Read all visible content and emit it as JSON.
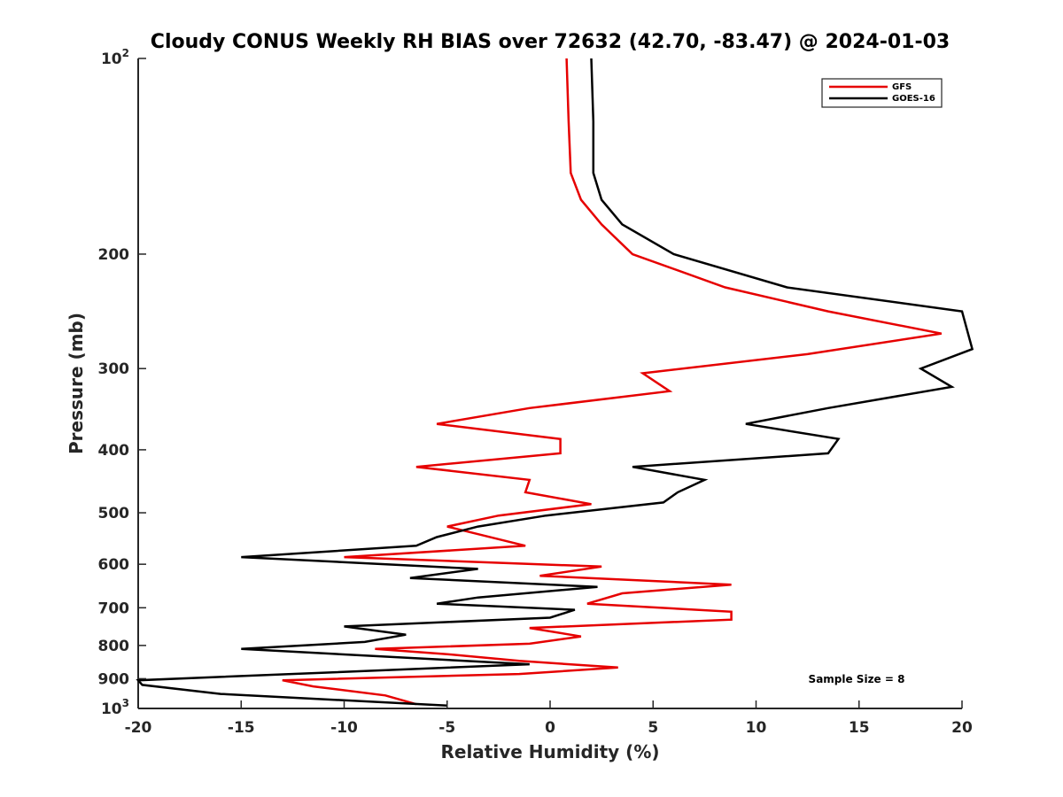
{
  "chart_data": {
    "type": "line",
    "title": "Cloudy CONUS Weekly RH BIAS over 72632 (42.70, -83.47) @ 2024-01-03",
    "xlabel": "Relative Humidity (%)",
    "ylabel": "Pressure (mb)",
    "xlim": [
      -20,
      20
    ],
    "ylim": [
      100,
      1000
    ],
    "yscale": "log",
    "y_reversed": true,
    "x_ticks": [
      "-20",
      "-15",
      "-10",
      "-5",
      "0",
      "5",
      "10",
      "15",
      "20"
    ],
    "y_ticks": [
      {
        "value": 100,
        "base": "10",
        "exp": "2"
      },
      {
        "value": 200,
        "label": "200"
      },
      {
        "value": 300,
        "label": "300"
      },
      {
        "value": 400,
        "label": "400"
      },
      {
        "value": 500,
        "label": "500"
      },
      {
        "value": 600,
        "label": "600"
      },
      {
        "value": 700,
        "label": "700"
      },
      {
        "value": 800,
        "label": "800"
      },
      {
        "value": 900,
        "label": "900"
      },
      {
        "value": 1000,
        "base": "10",
        "exp": "3"
      }
    ],
    "legend_position": "top-right",
    "grid": false,
    "annotation": "Sample Size = 8",
    "series": [
      {
        "name": "GFS",
        "color": "#e60000",
        "points": [
          [
            0.8,
            100
          ],
          [
            0.9,
            125
          ],
          [
            1.0,
            150
          ],
          [
            1.5,
            165
          ],
          [
            2.5,
            180
          ],
          [
            4.0,
            200
          ],
          [
            8.5,
            225
          ],
          [
            13.5,
            245
          ],
          [
            19.0,
            265
          ],
          [
            12.5,
            285
          ],
          [
            4.5,
            305
          ],
          [
            5.8,
            325
          ],
          [
            -1.0,
            345
          ],
          [
            -5.5,
            365
          ],
          [
            0.5,
            385
          ],
          [
            0.5,
            405
          ],
          [
            -6.5,
            425
          ],
          [
            -1.0,
            445
          ],
          [
            -1.2,
            465
          ],
          [
            2.0,
            485
          ],
          [
            -2.5,
            505
          ],
          [
            -5.0,
            525
          ],
          [
            -1.2,
            562
          ],
          [
            -10.0,
            585
          ],
          [
            2.5,
            605
          ],
          [
            -0.5,
            625
          ],
          [
            8.8,
            645
          ],
          [
            3.5,
            665
          ],
          [
            1.8,
            690
          ],
          [
            8.8,
            710
          ],
          [
            8.8,
            730
          ],
          [
            -1.0,
            752
          ],
          [
            1.5,
            775
          ],
          [
            -1.0,
            795
          ],
          [
            -8.5,
            810
          ],
          [
            -5.0,
            825
          ],
          [
            -1.5,
            845
          ],
          [
            3.3,
            865
          ],
          [
            -1.5,
            885
          ],
          [
            -13.0,
            905
          ],
          [
            -11.5,
            925
          ],
          [
            -8.0,
            955
          ],
          [
            -6.5,
            985
          ]
        ]
      },
      {
        "name": "GOES-16",
        "color": "#000000",
        "points": [
          [
            2.0,
            100
          ],
          [
            2.1,
            125
          ],
          [
            2.1,
            150
          ],
          [
            2.5,
            165
          ],
          [
            3.5,
            180
          ],
          [
            6.0,
            200
          ],
          [
            11.5,
            225
          ],
          [
            20.0,
            245
          ],
          [
            20.5,
            280
          ],
          [
            18.0,
            300
          ],
          [
            19.5,
            320
          ],
          [
            13.5,
            345
          ],
          [
            9.5,
            365
          ],
          [
            14.0,
            385
          ],
          [
            13.5,
            405
          ],
          [
            4.0,
            425
          ],
          [
            7.5,
            445
          ],
          [
            6.2,
            465
          ],
          [
            5.5,
            482
          ],
          [
            -0.2,
            505
          ],
          [
            -3.5,
            525
          ],
          [
            -5.5,
            545
          ],
          [
            -6.5,
            562
          ],
          [
            -15.0,
            585
          ],
          [
            -3.5,
            610
          ],
          [
            -6.8,
            630
          ],
          [
            2.3,
            650
          ],
          [
            -3.5,
            675
          ],
          [
            -5.5,
            690
          ],
          [
            1.2,
            705
          ],
          [
            0.0,
            725
          ],
          [
            -10.0,
            748
          ],
          [
            -7.0,
            770
          ],
          [
            -9.0,
            790
          ],
          [
            -15.0,
            810
          ],
          [
            -1.0,
            855
          ],
          [
            -20.0,
            905
          ],
          [
            -19.8,
            920
          ],
          [
            -16.0,
            950
          ],
          [
            -5.0,
            990
          ]
        ]
      }
    ]
  }
}
